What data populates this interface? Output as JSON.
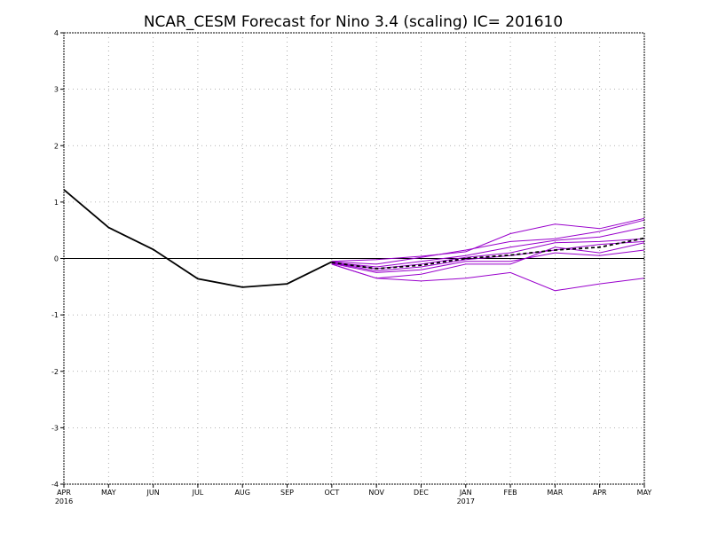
{
  "chart_data": {
    "type": "line",
    "title": "NCAR_CESM Forecast for Nino 3.4 (scaling)  IC= 201610",
    "xlabel": "",
    "ylabel": "",
    "ylim": [
      -4,
      4
    ],
    "y_ticks": [
      "-4",
      "-3",
      "-2",
      "-1",
      "0",
      "1",
      "2",
      "3",
      "4"
    ],
    "x_ticks": [
      "APR",
      "MAY",
      "JUN",
      "JUL",
      "AUG",
      "SEP",
      "OCT",
      "NOV",
      "DEC",
      "JAN",
      "FEB",
      "MAR",
      "APR",
      "MAY"
    ],
    "x_year_labels": [
      {
        "index": 0,
        "label": "2016"
      },
      {
        "index": 9,
        "label": "2017"
      }
    ],
    "grid": true,
    "zero_line": true,
    "colors": {
      "observed": "#000000",
      "members": "#9900cc",
      "mean": "#000000"
    },
    "observed": {
      "x_index": [
        0,
        1,
        2,
        3,
        4,
        5,
        6
      ],
      "values": [
        1.22,
        0.55,
        0.16,
        -0.36,
        -0.51,
        -0.45,
        -0.06
      ]
    },
    "members": [
      {
        "x_index": [
          6,
          7,
          8,
          9,
          10,
          11,
          12,
          13
        ],
        "values": [
          -0.05,
          -0.02,
          0.04,
          0.12,
          0.44,
          0.61,
          0.53,
          0.71
        ]
      },
      {
        "x_index": [
          6,
          7,
          8,
          9,
          10,
          11,
          12,
          13
        ],
        "values": [
          -0.06,
          -0.1,
          0.02,
          0.15,
          0.3,
          0.35,
          0.48,
          0.68
        ]
      },
      {
        "x_index": [
          6,
          7,
          8,
          9,
          10,
          11,
          12,
          13
        ],
        "values": [
          -0.07,
          -0.15,
          -0.05,
          0.05,
          0.2,
          0.32,
          0.38,
          0.55
        ]
      },
      {
        "x_index": [
          6,
          7,
          8,
          9,
          10,
          11,
          12,
          13
        ],
        "values": [
          -0.08,
          -0.18,
          -0.1,
          0.02,
          0.1,
          0.28,
          0.3,
          0.35
        ]
      },
      {
        "x_index": [
          6,
          7,
          8,
          9,
          10,
          11,
          12,
          13
        ],
        "values": [
          -0.08,
          -0.22,
          -0.15,
          -0.02,
          0.05,
          0.15,
          0.25,
          0.3
        ]
      },
      {
        "x_index": [
          6,
          7,
          8,
          9,
          10,
          11,
          12,
          13
        ],
        "values": [
          -0.09,
          -0.25,
          -0.2,
          -0.05,
          -0.05,
          0.1,
          0.05,
          0.15
        ]
      },
      {
        "x_index": [
          6,
          7,
          8,
          9,
          10,
          11,
          12,
          13
        ],
        "values": [
          -0.1,
          -0.35,
          -0.28,
          -0.1,
          -0.1,
          0.2,
          0.1,
          0.28
        ]
      },
      {
        "x_index": [
          6,
          7,
          8,
          9,
          10,
          11,
          12,
          13
        ],
        "values": [
          -0.1,
          -0.35,
          -0.4,
          -0.35,
          -0.25,
          -0.57,
          -0.45,
          -0.35
        ]
      }
    ],
    "ensemble_mean": {
      "x_index": [
        6,
        7,
        8,
        9,
        10,
        11,
        12,
        13
      ],
      "values": [
        -0.07,
        -0.18,
        -0.12,
        0.0,
        0.06,
        0.15,
        0.2,
        0.36
      ]
    }
  }
}
